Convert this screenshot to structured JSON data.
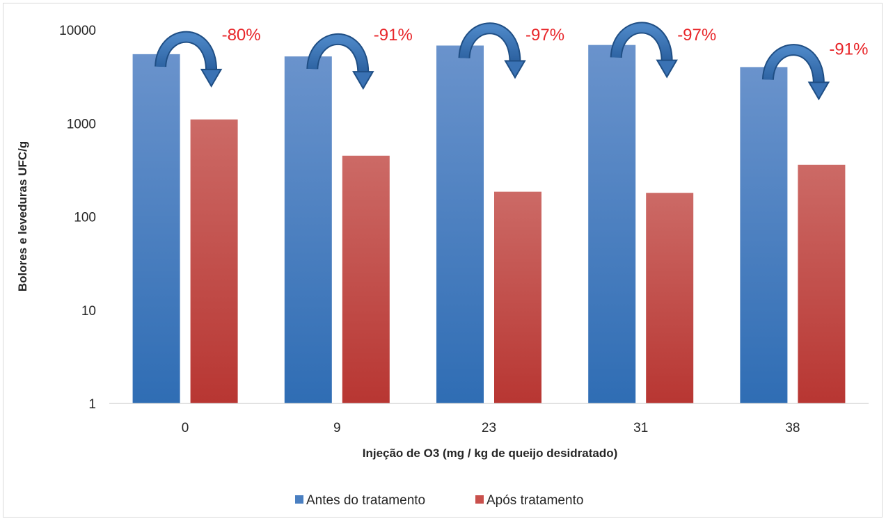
{
  "chart_data": {
    "type": "bar",
    "yscale": "log",
    "ylim": [
      1,
      10000
    ],
    "yticks": [
      "1",
      "10",
      "100",
      "1000",
      "10000"
    ],
    "categories": [
      "0",
      "9",
      "23",
      "31",
      "38"
    ],
    "xlabel": "Injeção  de O3 (mg / kg de queijo desidratado)",
    "ylabel": "Bolores e leveduras UFC/g",
    "legend_position": "bottom",
    "series": [
      {
        "name": "Antes do tratamento",
        "color": "#4a7fc1",
        "values": [
          5500,
          5200,
          6800,
          6900,
          4000
        ]
      },
      {
        "name": "Após tratamento",
        "color": "#c9504c",
        "values": [
          1100,
          450,
          185,
          180,
          360
        ]
      }
    ],
    "annotations": [
      "-80%",
      "-91%",
      "-97%",
      "-97%",
      "-91%"
    ],
    "grid": false
  }
}
